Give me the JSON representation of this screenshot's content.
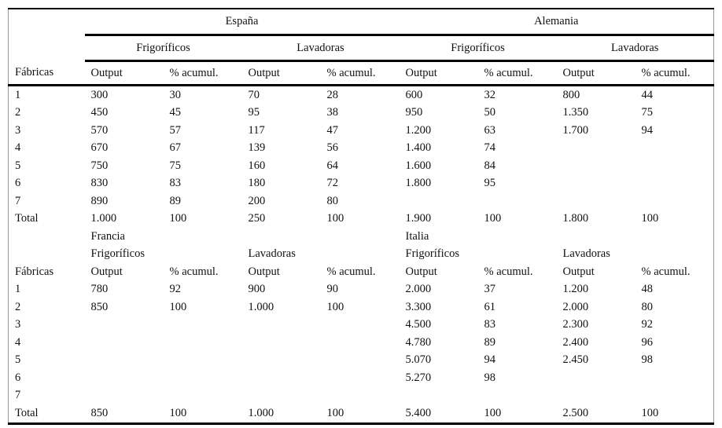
{
  "colors": {
    "rule": "#000000",
    "frame": "#9a9a9a",
    "text": "#111111",
    "background": "#ffffff"
  },
  "table": {
    "corner_label": "Fábricas",
    "total_label": "Total",
    "col_headers": [
      "Output",
      "% acumul.",
      "Output",
      "% acumul.",
      "Output",
      "% acumul.",
      "Output",
      "% acumul."
    ],
    "sections": [
      {
        "header_style": "spanned",
        "groups": [
          {
            "country": "España",
            "products": [
              "Frigoríficos",
              "Lavadoras"
            ]
          },
          {
            "country": "Alemania",
            "products": [
              "Frigoríficos",
              "Lavadoras"
            ]
          }
        ],
        "rows": [
          {
            "label": "1",
            "values": [
              "300",
              "30",
              "70",
              "28",
              "600",
              "32",
              "800",
              "44"
            ]
          },
          {
            "label": "2",
            "values": [
              "450",
              "45",
              "95",
              "38",
              "950",
              "50",
              "1.350",
              "75"
            ]
          },
          {
            "label": "3",
            "values": [
              "570",
              "57",
              "117",
              "47",
              "1.200",
              "63",
              "1.700",
              "94"
            ]
          },
          {
            "label": "4",
            "values": [
              "670",
              "67",
              "139",
              "56",
              "1.400",
              "74",
              "",
              ""
            ]
          },
          {
            "label": "5",
            "values": [
              "750",
              "75",
              "160",
              "64",
              "1.600",
              "84",
              "",
              ""
            ]
          },
          {
            "label": "6",
            "values": [
              "830",
              "83",
              "180",
              "72",
              "1.800",
              "95",
              "",
              ""
            ]
          },
          {
            "label": "7",
            "values": [
              "890",
              "89",
              "200",
              "80",
              "",
              "",
              "",
              ""
            ]
          },
          {
            "label": "Total",
            "values": [
              "1.000",
              "100",
              "250",
              "100",
              "1.900",
              "100",
              "1.800",
              "100"
            ]
          }
        ]
      },
      {
        "header_style": "inline",
        "groups": [
          {
            "country": "Francia",
            "products": [
              "Frigoríficos",
              "Lavadoras"
            ]
          },
          {
            "country": "Italia",
            "products": [
              "Frigoríficos",
              "Lavadoras"
            ]
          }
        ],
        "rows": [
          {
            "label": "1",
            "values": [
              "780",
              "92",
              "900",
              "90",
              "2.000",
              "37",
              "1.200",
              "48"
            ]
          },
          {
            "label": "2",
            "values": [
              "850",
              "100",
              "1.000",
              "100",
              "3.300",
              "61",
              "2.000",
              "80"
            ]
          },
          {
            "label": "3",
            "values": [
              "",
              "",
              "",
              "",
              "4.500",
              "83",
              "2.300",
              "92"
            ]
          },
          {
            "label": "4",
            "values": [
              "",
              "",
              "",
              "",
              "4.780",
              "89",
              "2.400",
              "96"
            ]
          },
          {
            "label": "5",
            "values": [
              "",
              "",
              "",
              "",
              "5.070",
              "94",
              "2.450",
              "98"
            ]
          },
          {
            "label": "6",
            "values": [
              "",
              "",
              "",
              "",
              "5.270",
              "98",
              "",
              ""
            ]
          },
          {
            "label": "7",
            "values": [
              "",
              "",
              "",
              "",
              "",
              "",
              "",
              ""
            ]
          },
          {
            "label": "Total",
            "values": [
              "850",
              "100",
              "1.000",
              "100",
              "5.400",
              "100",
              "2.500",
              "100"
            ]
          }
        ]
      }
    ]
  }
}
